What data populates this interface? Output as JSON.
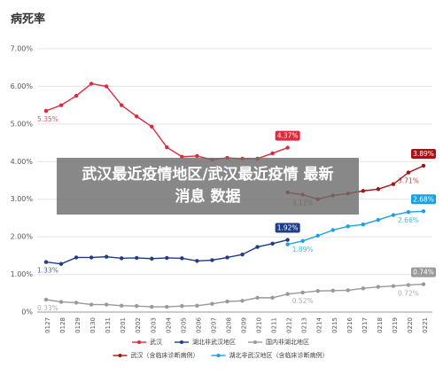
{
  "chart_data": {
    "type": "line",
    "title": "病死率",
    "categories": [
      "0127",
      "0128",
      "0129",
      "0130",
      "0131",
      "0201",
      "0202",
      "0203",
      "0204",
      "0205",
      "0206",
      "0207",
      "0208",
      "0209",
      "0210",
      "0211",
      "0212",
      "0213",
      "0214",
      "0215",
      "0216",
      "0217",
      "0218",
      "0219",
      "0220",
      "0221"
    ],
    "ylim": [
      0,
      7
    ],
    "yticks": [
      {
        "value": 0,
        "label": "0%"
      },
      {
        "value": 1,
        "label": "1.00%"
      },
      {
        "value": 2,
        "label": "2.00%"
      },
      {
        "value": 3,
        "label": "3.00%"
      },
      {
        "value": 4,
        "label": "4.00%"
      },
      {
        "value": 5,
        "label": "5.00%"
      },
      {
        "value": 6,
        "label": "6.00%"
      },
      {
        "value": 7,
        "label": "7.00%"
      }
    ],
    "grid": true,
    "legend": "bottom",
    "series": [
      {
        "name": "武汉",
        "color": "#e0283c",
        "values": [
          5.35,
          5.5,
          5.75,
          6.07,
          6.0,
          5.5,
          5.2,
          4.93,
          4.38,
          4.13,
          4.15,
          4.05,
          4.1,
          4.08,
          4.08,
          4.22,
          4.37,
          null,
          null,
          null,
          null,
          null,
          null,
          null,
          null,
          null
        ],
        "value_labels": [
          "5.35%",
          null,
          null,
          null,
          null,
          null,
          null,
          null,
          null,
          null,
          null,
          null,
          null,
          null,
          null,
          null,
          "4.37%",
          null,
          null,
          null,
          null,
          null,
          null,
          null,
          null,
          null
        ]
      },
      {
        "name": "湖北非武汉地区",
        "color": "#1f3c88",
        "values": [
          1.33,
          1.28,
          1.45,
          1.45,
          1.47,
          1.43,
          1.44,
          1.42,
          1.44,
          1.43,
          1.36,
          1.38,
          1.45,
          1.53,
          1.73,
          1.82,
          1.92,
          null,
          null,
          null,
          null,
          null,
          null,
          null,
          null,
          null
        ],
        "value_labels": [
          "1.33%",
          null,
          null,
          null,
          null,
          null,
          null,
          null,
          null,
          null,
          null,
          null,
          null,
          null,
          null,
          null,
          "1.92%",
          null,
          null,
          null,
          null,
          null,
          null,
          null,
          null,
          null
        ]
      },
      {
        "name": "国内非湖北地区",
        "color": "#999999",
        "values": [
          0.33,
          0.27,
          0.25,
          0.2,
          0.2,
          0.17,
          0.16,
          0.14,
          0.14,
          0.16,
          0.17,
          0.22,
          0.28,
          0.3,
          0.38,
          0.38,
          0.48,
          0.52,
          0.56,
          0.57,
          0.58,
          0.63,
          0.67,
          0.69,
          0.72,
          0.74
        ],
        "value_labels": [
          "0.33%",
          null,
          null,
          null,
          null,
          null,
          null,
          null,
          null,
          null,
          null,
          null,
          null,
          null,
          null,
          null,
          null,
          "0.52%",
          null,
          null,
          null,
          null,
          null,
          null,
          "0.72%",
          "0.74%"
        ]
      },
      {
        "name": "武汉（含临床诊断病例）",
        "color": "#a31515",
        "values": [
          null,
          null,
          null,
          null,
          null,
          null,
          null,
          null,
          null,
          null,
          null,
          null,
          null,
          null,
          null,
          null,
          3.18,
          3.12,
          3.0,
          3.1,
          3.15,
          3.22,
          3.27,
          3.4,
          3.71,
          3.89
        ],
        "value_labels": [
          null,
          null,
          null,
          null,
          null,
          null,
          null,
          null,
          null,
          null,
          null,
          null,
          null,
          null,
          null,
          null,
          null,
          "3.12%",
          null,
          null,
          null,
          null,
          null,
          null,
          "3.71%",
          "3.89%"
        ]
      },
      {
        "name": "湖北非武汉地区（含临床诊断病例）",
        "color": "#1ba1e2",
        "values": [
          null,
          null,
          null,
          null,
          null,
          null,
          null,
          null,
          null,
          null,
          null,
          null,
          null,
          null,
          null,
          null,
          1.8,
          1.89,
          2.03,
          2.18,
          2.28,
          2.33,
          2.45,
          2.58,
          2.66,
          2.68
        ],
        "value_labels": [
          null,
          null,
          null,
          null,
          null,
          null,
          null,
          null,
          null,
          null,
          null,
          null,
          null,
          null,
          null,
          null,
          null,
          "1.89%",
          null,
          null,
          null,
          null,
          null,
          null,
          "2.66%",
          "2.68%"
        ]
      }
    ]
  },
  "banner": "武汉最近疫情地区/武汉最近疫情 最新消息 数据"
}
